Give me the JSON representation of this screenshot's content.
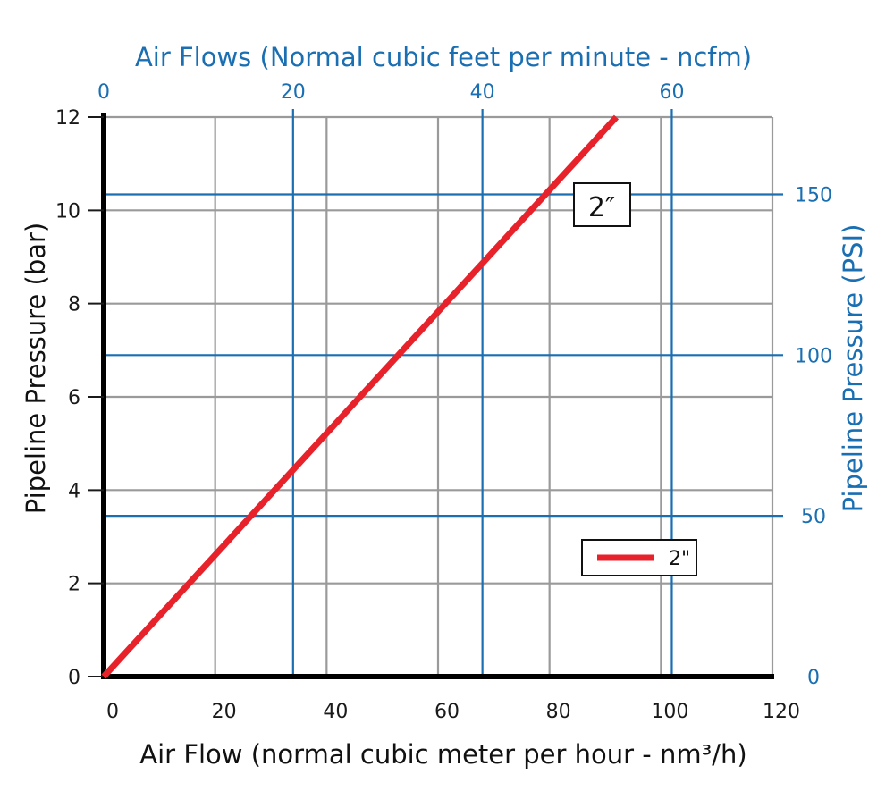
{
  "chart_data": {
    "type": "line",
    "title": "Air Flows (Normal cubic feet per minute - ncfm)",
    "xlabel": "Air Flow (normal cubic meter per hour - nm³/h)",
    "ylabel": "Pipeline Pressure (bar)",
    "y2label": "Pipeline Pressure (PSI)",
    "xlim": [
      0,
      120
    ],
    "ylim": [
      0,
      12
    ],
    "x_ticks": [
      "0",
      "20",
      "40",
      "60",
      "80",
      "100",
      "120"
    ],
    "x_tick_values": [
      0,
      20,
      40,
      60,
      80,
      100,
      120
    ],
    "y_ticks": [
      "0",
      "2",
      "4",
      "6",
      "8",
      "10",
      "12"
    ],
    "y_tick_values": [
      0,
      2,
      4,
      6,
      8,
      10,
      12
    ],
    "top_axis": {
      "ticks": [
        "0",
        "20",
        "40",
        "60"
      ],
      "tick_values_ncfm": [
        0,
        20,
        40,
        60
      ],
      "nm3h_per_ncfm": 1.6991
    },
    "right_axis": {
      "ticks": [
        "0",
        "50",
        "100",
        "150"
      ],
      "tick_values_psi": [
        0,
        50,
        100,
        150
      ],
      "bar_per_psi": 0.0689476
    },
    "series": [
      {
        "name": "2\"",
        "color": "#e8222b",
        "x": [
          0,
          92
        ],
        "y": [
          0,
          12
        ]
      }
    ],
    "annotation": {
      "text": "2″",
      "x": 89,
      "y": 10.1
    },
    "legend_position": "bottom-right",
    "grid": true,
    "colors": {
      "grid_gray": "#9a9a9a",
      "blue": "#1a6fb3",
      "axis": "#000000",
      "line": "#e8222b"
    }
  }
}
